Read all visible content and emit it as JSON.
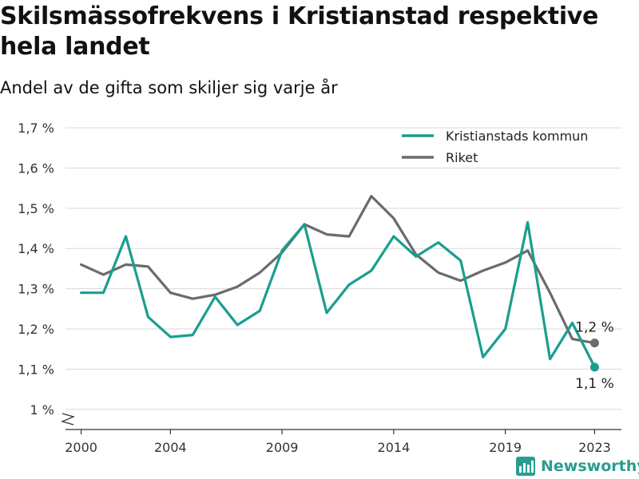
{
  "header": {
    "title": "Skilsmässofrekvens i Kristianstad respektive hela landet",
    "subtitle": "Andel av de gifta som skiljer sig varje år"
  },
  "brand": {
    "name": "Newsworthy",
    "icon": "bar-chart-logo-icon",
    "color": "#2a9d8f"
  },
  "chart_data": {
    "type": "line",
    "title": "Skilsmässofrekvens i Kristianstad respektive hela landet",
    "subtitle": "Andel av de gifta som skiljer sig varje år",
    "x": [
      2000,
      2001,
      2002,
      2003,
      2004,
      2005,
      2006,
      2007,
      2008,
      2009,
      2010,
      2011,
      2012,
      2013,
      2014,
      2015,
      2016,
      2017,
      2018,
      2019,
      2020,
      2021,
      2022,
      2023
    ],
    "x_ticks": [
      2000,
      2004,
      2009,
      2014,
      2019,
      2023
    ],
    "y_ticks": [
      1.0,
      1.1,
      1.2,
      1.3,
      1.4,
      1.5,
      1.6,
      1.7
    ],
    "y_tick_labels": [
      "1 %",
      "1,1 %",
      "1,2 %",
      "1,3 %",
      "1,4 %",
      "1,5 %",
      "1,6 %",
      "1,7 %"
    ],
    "ylim": [
      0.95,
      1.72
    ],
    "xlim": [
      1999.3,
      2024.2
    ],
    "grid": true,
    "legend_position": "top-right",
    "series": [
      {
        "name": "Kristianstads kommun",
        "color": "#1a9e8f",
        "values": [
          1.29,
          1.29,
          1.43,
          1.23,
          1.18,
          1.185,
          1.28,
          1.21,
          1.245,
          1.395,
          1.46,
          1.24,
          1.31,
          1.345,
          1.43,
          1.38,
          1.415,
          1.37,
          1.13,
          1.2,
          1.465,
          1.125,
          1.215,
          1.105
        ],
        "end_label": "1,1 %"
      },
      {
        "name": "Riket",
        "color": "#6b6b6e",
        "values": [
          1.36,
          1.335,
          1.36,
          1.355,
          1.29,
          1.275,
          1.285,
          1.305,
          1.34,
          1.39,
          1.46,
          1.435,
          1.43,
          1.53,
          1.475,
          1.385,
          1.34,
          1.32,
          1.345,
          1.365,
          1.395,
          1.29,
          1.175,
          1.165
        ],
        "end_label": "1,2 %"
      }
    ]
  }
}
